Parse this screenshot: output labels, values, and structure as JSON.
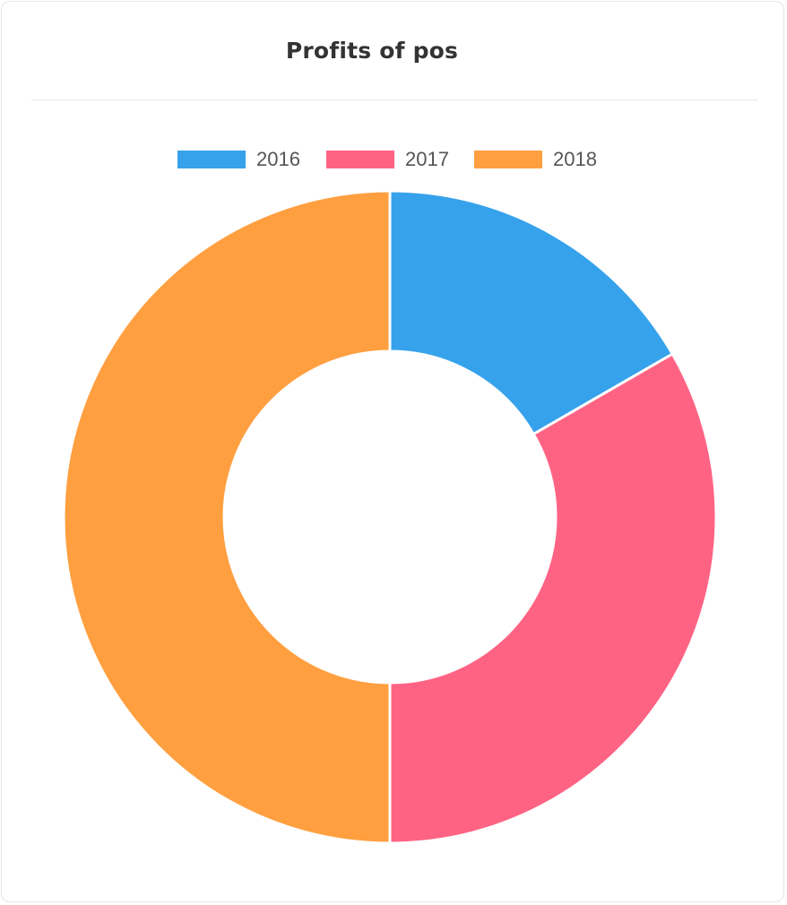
{
  "card": {
    "title": "Profits of pos"
  },
  "chart_data": {
    "type": "pie",
    "variant": "doughnut",
    "title": "Profits of pos",
    "legend": {
      "position": "top",
      "entries": [
        "2016",
        "2017",
        "2018"
      ]
    },
    "categories": [
      "2016",
      "2017",
      "2018"
    ],
    "values": [
      1,
      2,
      3
    ],
    "colors": [
      "#36a2eb",
      "#ff6384",
      "#ff9f40"
    ]
  }
}
